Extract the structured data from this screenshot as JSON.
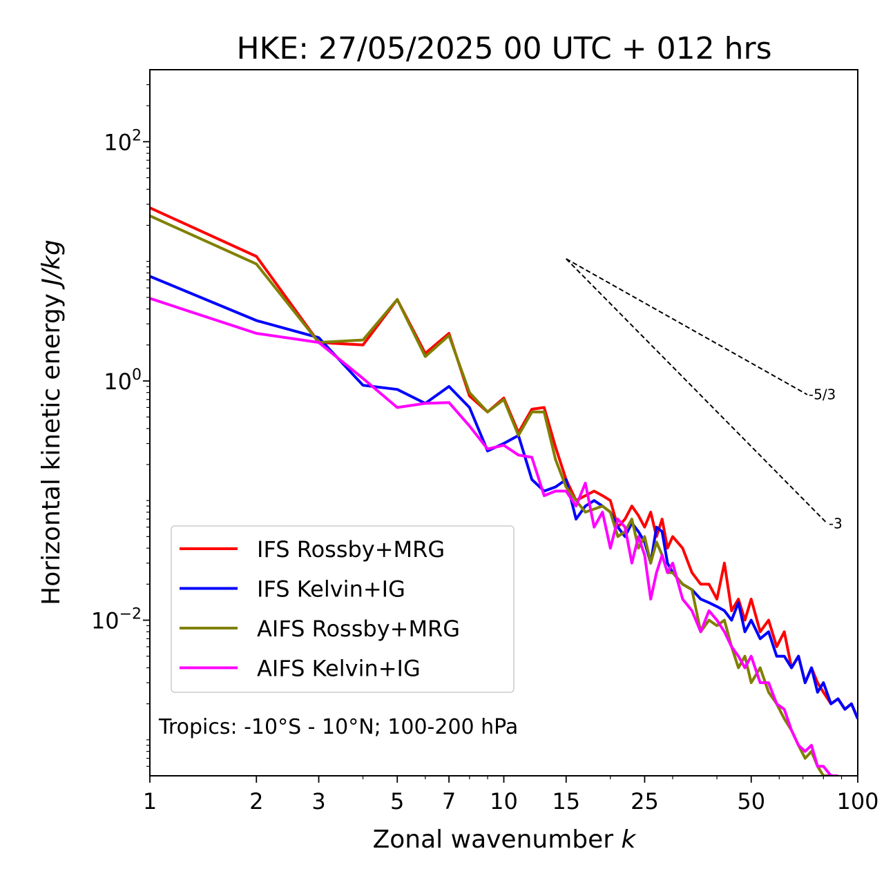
{
  "chart_data": {
    "type": "line",
    "title": "HKE: 27/05/2025 00 UTC + 012 hrs",
    "xlabel": "Zonal wavenumber k",
    "xlabel_text": "Zonal wavenumber ",
    "xlabel_italic": "k",
    "ylabel_text": "Horizontal kinetic energy ",
    "ylabel_italic": "J/kg",
    "xscale": "log",
    "yscale": "log",
    "xlim": [
      1,
      100
    ],
    "ylim": [
      0.0005,
      400
    ],
    "xticks": [
      1,
      2,
      3,
      5,
      7,
      10,
      15,
      25,
      50,
      100
    ],
    "xtick_labels": [
      "1",
      "2",
      "3",
      "5",
      "7",
      "10",
      "15",
      "25",
      "50",
      "100"
    ],
    "yticks": [
      {
        "value": 100,
        "base": "10",
        "exp": "2"
      },
      {
        "value": 1,
        "base": "10",
        "exp": "0"
      },
      {
        "value": 0.01,
        "base": "10",
        "exp": "−2"
      }
    ],
    "annotation": "Tropics: -10°S - 10°N; 100-200 hPa",
    "legend_position": "lower-left",
    "reference_lines": [
      {
        "label": "-5/3",
        "slope": -1.6667,
        "x_start": 15,
        "y_start": 10.5,
        "x_end": 72
      },
      {
        "label": "-3",
        "slope": -3,
        "x_start": 15,
        "y_start": 10.5,
        "x_end": 82
      }
    ],
    "series": [
      {
        "name": "IFS Rossby+MRG",
        "color": "#ff0000",
        "x": [
          1,
          2,
          3,
          4,
          5,
          6,
          7,
          8,
          9,
          10,
          11,
          12,
          13,
          14,
          15,
          16,
          17,
          18,
          19,
          20,
          21,
          22,
          23,
          24,
          25,
          26,
          27,
          28,
          29,
          30,
          32,
          34,
          36,
          38,
          40,
          42,
          44,
          46,
          48,
          50,
          53,
          56,
          59,
          62,
          65,
          68,
          71,
          74,
          77,
          80,
          84,
          88,
          92,
          96,
          100
        ],
        "y": [
          28,
          11,
          2.1,
          2.0,
          4.8,
          1.7,
          2.5,
          0.75,
          0.55,
          0.72,
          0.37,
          0.58,
          0.6,
          0.28,
          0.15,
          0.1,
          0.11,
          0.12,
          0.11,
          0.1,
          0.06,
          0.07,
          0.09,
          0.075,
          0.06,
          0.08,
          0.05,
          0.07,
          0.04,
          0.05,
          0.04,
          0.025,
          0.02,
          0.02,
          0.015,
          0.03,
          0.012,
          0.015,
          0.01,
          0.015,
          0.008,
          0.01,
          0.006,
          0.008,
          0.004,
          0.005,
          0.003,
          0.004,
          0.003,
          0.0025,
          0.002,
          0.0022,
          0.0018,
          0.002,
          0.0015
        ]
      },
      {
        "name": "IFS Kelvin+IG",
        "color": "#0000ff",
        "x": [
          1,
          2,
          3,
          4,
          5,
          6,
          7,
          8,
          9,
          10,
          11,
          12,
          13,
          14,
          15,
          16,
          17,
          18,
          19,
          20,
          21,
          22,
          23,
          24,
          25,
          26,
          27,
          28,
          29,
          30,
          32,
          34,
          36,
          38,
          40,
          42,
          44,
          46,
          48,
          50,
          53,
          56,
          59,
          62,
          65,
          68,
          71,
          74,
          77,
          80,
          84,
          88,
          92,
          96,
          100
        ],
        "y": [
          7.5,
          3.2,
          2.3,
          0.92,
          0.85,
          0.65,
          0.9,
          0.6,
          0.26,
          0.3,
          0.35,
          0.15,
          0.12,
          0.13,
          0.15,
          0.07,
          0.09,
          0.1,
          0.09,
          0.08,
          0.06,
          0.05,
          0.065,
          0.055,
          0.045,
          0.03,
          0.06,
          0.055,
          0.03,
          0.025,
          0.02,
          0.018,
          0.015,
          0.014,
          0.013,
          0.012,
          0.01,
          0.014,
          0.008,
          0.01,
          0.007,
          0.008,
          0.005,
          0.005,
          0.004,
          0.005,
          0.003,
          0.004,
          0.0025,
          0.003,
          0.002,
          0.0022,
          0.0018,
          0.002,
          0.0015
        ]
      },
      {
        "name": "AIFS Rossby+MRG",
        "color": "#808000",
        "x": [
          1,
          2,
          3,
          4,
          5,
          6,
          7,
          8,
          9,
          10,
          11,
          12,
          13,
          14,
          15,
          16,
          17,
          18,
          19,
          20,
          21,
          22,
          23,
          24,
          25,
          26,
          27,
          28,
          29,
          30,
          32,
          34,
          36,
          38,
          40,
          42,
          44,
          46,
          48,
          50,
          53,
          56,
          59,
          62,
          65,
          68,
          71,
          74,
          77,
          80,
          84,
          88
        ],
        "y": [
          24,
          9.5,
          2.1,
          2.2,
          4.8,
          1.6,
          2.4,
          0.8,
          0.55,
          0.7,
          0.35,
          0.55,
          0.55,
          0.22,
          0.13,
          0.1,
          0.08,
          0.085,
          0.09,
          0.08,
          0.05,
          0.055,
          0.07,
          0.04,
          0.05,
          0.03,
          0.045,
          0.035,
          0.025,
          0.025,
          0.02,
          0.018,
          0.008,
          0.01,
          0.009,
          0.01,
          0.006,
          0.004,
          0.005,
          0.003,
          0.004,
          0.0025,
          0.002,
          0.0015,
          0.0012,
          0.0009,
          0.0007,
          0.0008,
          0.0006,
          0.0005,
          0.0005,
          0.0005
        ]
      },
      {
        "name": "AIFS Kelvin+IG",
        "color": "#ff00ff",
        "x": [
          1,
          2,
          3,
          4,
          5,
          6,
          7,
          8,
          9,
          10,
          11,
          12,
          13,
          14,
          15,
          16,
          17,
          18,
          19,
          20,
          21,
          22,
          23,
          24,
          25,
          26,
          27,
          28,
          29,
          30,
          32,
          34,
          36,
          38,
          40,
          42,
          44,
          46,
          48,
          50,
          53,
          56,
          59,
          62,
          65,
          68,
          71,
          74,
          77,
          80,
          84,
          88
        ],
        "y": [
          4.9,
          2.5,
          2.1,
          1.05,
          0.6,
          0.65,
          0.66,
          0.42,
          0.27,
          0.29,
          0.24,
          0.23,
          0.11,
          0.12,
          0.12,
          0.09,
          0.14,
          0.06,
          0.08,
          0.04,
          0.07,
          0.06,
          0.03,
          0.05,
          0.035,
          0.015,
          0.025,
          0.035,
          0.025,
          0.03,
          0.015,
          0.012,
          0.008,
          0.012,
          0.01,
          0.008,
          0.006,
          0.005,
          0.004,
          0.005,
          0.003,
          0.003,
          0.002,
          0.0018,
          0.0012,
          0.0009,
          0.0008,
          0.0009,
          0.0006,
          0.0006,
          0.0005,
          0.0005
        ]
      }
    ]
  }
}
